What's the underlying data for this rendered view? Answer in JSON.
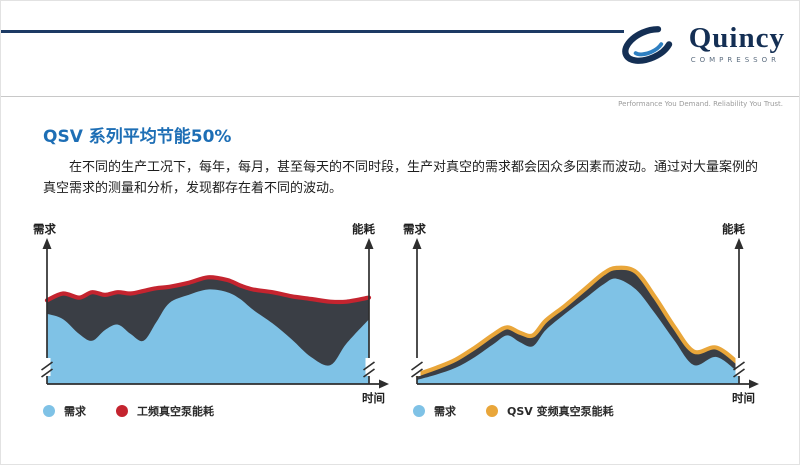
{
  "header": {
    "brand": "Quincy",
    "brand_sub": "COMPRESSOR",
    "tagline": "Performance You Demand. Reliability You Trust."
  },
  "content": {
    "title": "QSV 系列平均节能50%",
    "paragraph": "在不同的生产工况下，每年，每月，甚至每天的不同时段，生产对真空的需求都会因众多因素而波动。通过对大量案例的真空需求的测量和分析，发现都存在着不同的波动。"
  },
  "colors": {
    "brand_navy": "#142f54",
    "title_blue": "#1d6eb5",
    "demand_blue": "#7fc2e6",
    "dark_fill": "#3a3e45",
    "fixed_red": "#c4242f",
    "qsv_yellow": "#e9a63a",
    "axis": "#2e2e2e"
  },
  "chart_data": [
    {
      "type": "area",
      "ylabel_left": "需求",
      "ylabel_right": "能耗",
      "xlabel": "时间",
      "ylim": [
        0,
        1
      ],
      "note": "qualitative sketch; values are relative levels over normalized time",
      "x": [
        0,
        0.05,
        0.1,
        0.14,
        0.18,
        0.22,
        0.26,
        0.3,
        0.34,
        0.38,
        0.44,
        0.5,
        0.56,
        0.6,
        0.64,
        0.7,
        0.76,
        0.82,
        0.88,
        0.93,
        1.0
      ],
      "series": [
        {
          "name": "需求",
          "color": "#7fc2e6",
          "values": [
            0.52,
            0.48,
            0.37,
            0.32,
            0.4,
            0.44,
            0.37,
            0.32,
            0.46,
            0.6,
            0.66,
            0.7,
            0.68,
            0.63,
            0.55,
            0.45,
            0.33,
            0.2,
            0.14,
            0.3,
            0.48
          ]
        },
        {
          "name": "工频真空泵能耗",
          "color": "#c4242f",
          "values": [
            0.62,
            0.67,
            0.64,
            0.68,
            0.66,
            0.68,
            0.67,
            0.69,
            0.71,
            0.72,
            0.75,
            0.79,
            0.77,
            0.73,
            0.7,
            0.68,
            0.65,
            0.63,
            0.61,
            0.61,
            0.64
          ]
        }
      ],
      "legend": [
        {
          "label": "需求",
          "color": "#7fc2e6"
        },
        {
          "label": "工频真空泵能耗",
          "color": "#c4242f"
        }
      ]
    },
    {
      "type": "area",
      "ylabel_left": "需求",
      "ylabel_right": "能耗",
      "xlabel": "时间",
      "ylim": [
        0,
        1
      ],
      "note": "qualitative sketch; QSV energy tracks demand closely",
      "x": [
        0,
        0.06,
        0.12,
        0.18,
        0.24,
        0.28,
        0.32,
        0.36,
        0.4,
        0.46,
        0.52,
        0.58,
        0.62,
        0.68,
        0.74,
        0.8,
        0.86,
        0.93,
        1.0
      ],
      "series": [
        {
          "name": "需求",
          "color": "#7fc2e6",
          "values": [
            0.03,
            0.07,
            0.12,
            0.2,
            0.3,
            0.36,
            0.31,
            0.28,
            0.4,
            0.52,
            0.63,
            0.74,
            0.78,
            0.7,
            0.52,
            0.32,
            0.14,
            0.2,
            0.08
          ]
        },
        {
          "name": "QSV 变频真空泵能耗",
          "color": "#e9a63a",
          "values": [
            0.07,
            0.12,
            0.18,
            0.27,
            0.37,
            0.42,
            0.38,
            0.36,
            0.47,
            0.58,
            0.7,
            0.82,
            0.86,
            0.83,
            0.64,
            0.42,
            0.24,
            0.27,
            0.15
          ]
        }
      ],
      "legend": [
        {
          "label": "需求",
          "color": "#7fc2e6"
        },
        {
          "label": "QSV 变频真空泵能耗",
          "color": "#e9a63a"
        }
      ]
    }
  ]
}
